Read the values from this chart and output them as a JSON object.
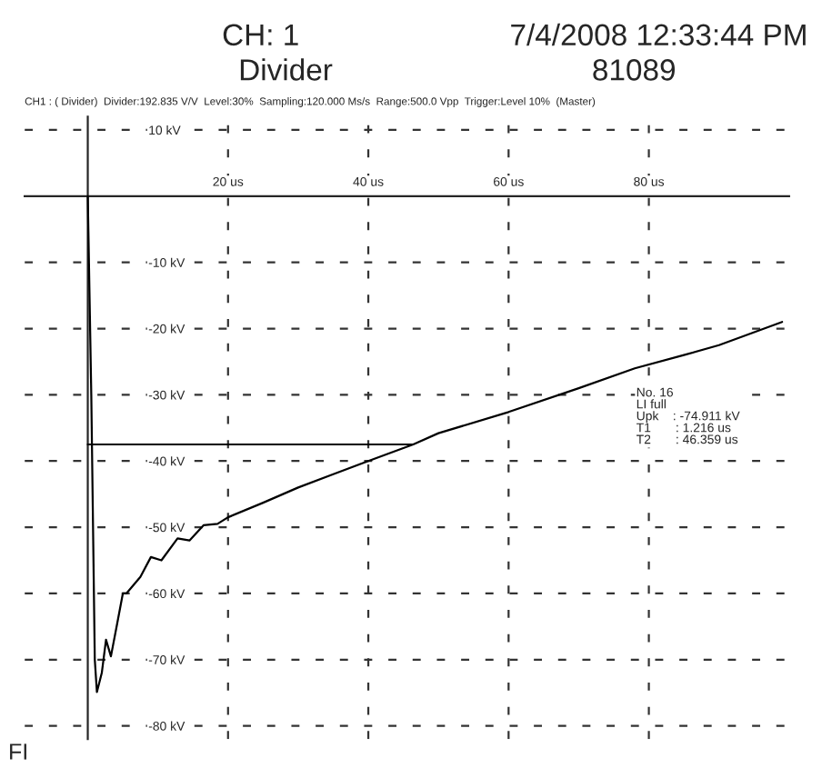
{
  "chart_data": {
    "type": "line",
    "title": "CH: 1",
    "subtitle": "CH1 : ( Divider)  Divider:192.835 V/V  Level:30%  Sampling:120.000 Ms/s  Range:500.0 Vpp  Trigger:Level 10%  (Master)",
    "annotations": [
      "7/4/2008 12:33:44 PM",
      "Divider",
      "81089",
      "No. 16\nLI full\nUpk    : -74.911 kV\nT1       : 1.216 us\nT2       : 46.359 us",
      "FI"
    ],
    "series": [
      {
        "color": "#000000",
        "x": [
          0,
          0.5,
          1.0,
          1.3,
          2,
          2.6,
          3.3,
          4.2,
          5,
          5.5,
          7.5,
          9,
          10.5,
          12.8,
          14.5,
          16.5,
          18.5,
          20,
          25,
          30,
          35,
          40,
          46.4,
          50,
          60,
          70,
          78,
          85,
          90,
          99
        ],
        "values": [
          0,
          -30,
          -70,
          -74.9,
          -72,
          -67,
          -69.5,
          -64.5,
          -60,
          -60,
          -57.5,
          -54.5,
          -55,
          -51.7,
          -52,
          -49.7,
          -49.5,
          -48.5,
          -46.3,
          -44,
          -42,
          -40,
          -37.5,
          -35.8,
          -32.6,
          -29,
          -26,
          -24,
          -22.5,
          -19
        ]
      },
      {
        "color": "#000000",
        "x": [
          0,
          46.359
        ],
        "values": [
          -37.5,
          -37.5
        ]
      }
    ],
    "xlim": [
      -9,
      100
    ],
    "ylim": [
      -82,
      12
    ],
    "xticks": [
      {
        "value": 20,
        "label": "20 us"
      },
      {
        "value": 40,
        "label": "40 us"
      },
      {
        "value": 60,
        "label": "60 us"
      },
      {
        "value": 80,
        "label": "80 us"
      }
    ],
    "yticks": [
      {
        "value": 10,
        "label": "10 kV"
      },
      {
        "value": -10,
        "label": "-10 kV"
      },
      {
        "value": -20,
        "label": "-20 kV"
      },
      {
        "value": -30,
        "label": "-30 kV"
      },
      {
        "value": -40,
        "label": "-40 kV"
      },
      {
        "value": -50,
        "label": "-50 kV"
      },
      {
        "value": -60,
        "label": "-60 kV"
      },
      {
        "value": -70,
        "label": "-70 kV"
      },
      {
        "value": -80,
        "label": "-80 kV"
      }
    ],
    "grid": true,
    "line_style": "solid",
    "marker": "none",
    "legend": false
  }
}
